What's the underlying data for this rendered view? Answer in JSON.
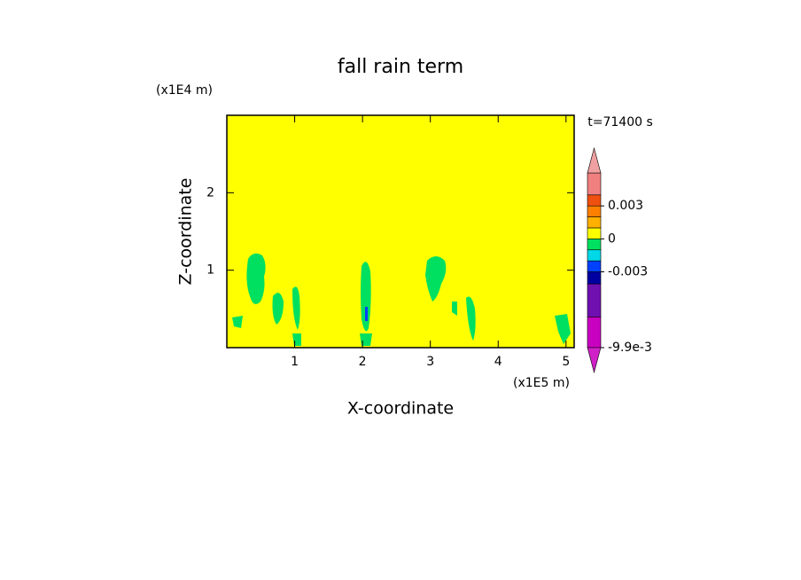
{
  "chart_data": {
    "type": "contour",
    "title": "fall rain term",
    "x_label": "X-coordinate",
    "x_unit": "(x1E5 m)",
    "y_label": "Z-coordinate",
    "y_unit": "(x1E4 m)",
    "annotation": "t=71400 s",
    "xlim": [
      0,
      5.12
    ],
    "xticks": [
      1,
      2,
      3,
      4,
      5
    ],
    "ylim": [
      0,
      3
    ],
    "yticks": [
      1,
      2
    ],
    "colorbar": {
      "lim": [
        -0.0099,
        0.006
      ],
      "bounds": [
        -0.0099,
        -0.0071,
        -0.0041,
        -0.003,
        -0.002,
        -0.001,
        0,
        0.001,
        0.002,
        0.003,
        0.004,
        0.006
      ],
      "colors": [
        "#c800c0",
        "#7010b0",
        "#0000a0",
        "#0040ff",
        "#00d8e8",
        "#00e060",
        "#ffff00",
        "#ffb000",
        "#ff8000",
        "#f05010",
        "#f08080"
      ],
      "extend_colors": [
        "#d020c8",
        "#f0a0a0"
      ],
      "ticks": [
        0.003,
        0,
        -0.003,
        {
          "value": -0.0099,
          "label": "-9.9e-3"
        }
      ]
    }
  }
}
